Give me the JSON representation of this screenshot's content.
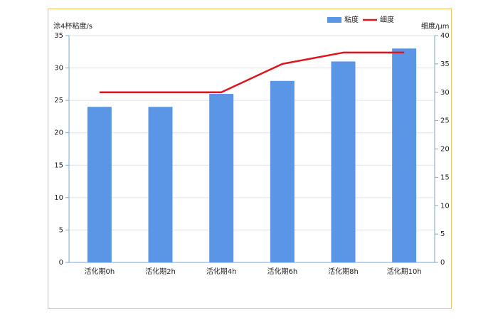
{
  "chart_data": {
    "type": "bar_line",
    "y_label": "涂4杯粘度/s",
    "y2_label": "细度/μm",
    "categories": [
      "活化期0h",
      "活化期2h",
      "活化期4h",
      "活化期6h",
      "活化期8h",
      "活化期10h"
    ],
    "series": [
      {
        "name": "粘度",
        "type": "bar",
        "color": "#5b96e6",
        "values": [
          24,
          24,
          26,
          28,
          31,
          33
        ]
      },
      {
        "name": "细度",
        "type": "line",
        "color": "#e0141e",
        "axis": "y2",
        "values": [
          30,
          30,
          30,
          35,
          37,
          37
        ]
      }
    ],
    "ylim": [
      0,
      35
    ],
    "yticks": [
      0,
      5,
      10,
      15,
      20,
      25,
      30,
      35
    ],
    "y2lim": [
      0,
      40
    ],
    "y2ticks": [
      0,
      5,
      10,
      15,
      20,
      25,
      30,
      35,
      40
    ],
    "grid": true,
    "legend": "top"
  }
}
